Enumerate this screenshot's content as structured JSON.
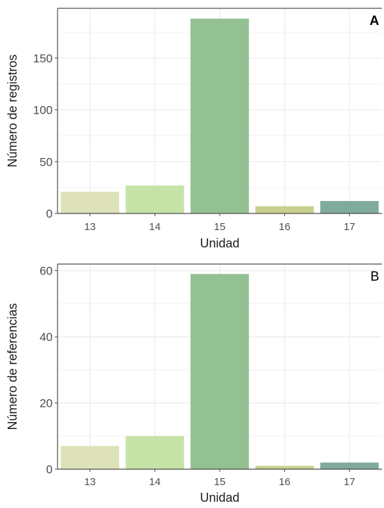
{
  "chart_data": [
    {
      "type": "bar",
      "panel_label": "A",
      "categories": [
        "13",
        "14",
        "15",
        "16",
        "17"
      ],
      "values": [
        21,
        27,
        188,
        7,
        12
      ],
      "colors": [
        "#dde2b8",
        "#c5e3a6",
        "#93c192",
        "#c8cf8e",
        "#7fab9c"
      ],
      "xlabel": "Unidad",
      "ylabel": "Número de registros",
      "ylim": [
        0,
        198
      ],
      "yticks": [
        0,
        50,
        100,
        150
      ],
      "grid": true
    },
    {
      "type": "bar",
      "panel_label": "B",
      "categories": [
        "13",
        "14",
        "15",
        "16",
        "17"
      ],
      "values": [
        7,
        10,
        59,
        1,
        2
      ],
      "colors": [
        "#dde2b8",
        "#c5e3a6",
        "#93c192",
        "#c8cf8e",
        "#7fab9c"
      ],
      "xlabel": "Unidad",
      "ylabel": "Número de referencias",
      "ylim": [
        0,
        62
      ],
      "yticks": [
        0,
        20,
        40,
        60
      ],
      "grid": true
    }
  ]
}
